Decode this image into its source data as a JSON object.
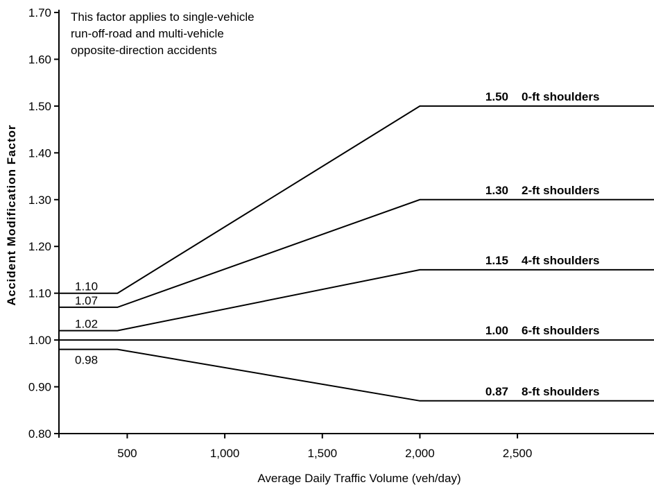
{
  "chart_data": {
    "type": "line",
    "xlabel": "Average Daily Traffic Volume (veh/day)",
    "ylabel": "Accident Modification Factor",
    "xlim": [
      150,
      3200
    ],
    "ylim": [
      0.8,
      1.7
    ],
    "x_ticks": [
      {
        "value": 500,
        "label": "500"
      },
      {
        "value": 1000,
        "label": "1,000"
      },
      {
        "value": 1500,
        "label": "1,500"
      },
      {
        "value": 2000,
        "label": "2,000"
      },
      {
        "value": 2500,
        "label": "2,500"
      }
    ],
    "y_ticks": [
      {
        "value": 0.8,
        "label": "0.80"
      },
      {
        "value": 0.9,
        "label": "0.90"
      },
      {
        "value": 1.0,
        "label": "1.00"
      },
      {
        "value": 1.1,
        "label": "1.10"
      },
      {
        "value": 1.2,
        "label": "1.20"
      },
      {
        "value": 1.3,
        "label": "1.30"
      },
      {
        "value": 1.4,
        "label": "1.40"
      },
      {
        "value": 1.5,
        "label": "1.50"
      },
      {
        "value": 1.6,
        "label": "1.60"
      },
      {
        "value": 1.7,
        "label": "1.70"
      }
    ],
    "annotation": [
      "This factor applies to single-vehicle",
      "run-off-road and multi-vehicle",
      "opposite-direction accidents"
    ],
    "series": [
      {
        "name": "0-ft shoulders",
        "value_label": "1.50",
        "start_label": "1.10",
        "x": [
          150,
          450,
          2000,
          3200
        ],
        "y": [
          1.1,
          1.1,
          1.5,
          1.5
        ]
      },
      {
        "name": "2-ft shoulders",
        "value_label": "1.30",
        "start_label": "1.07",
        "x": [
          150,
          450,
          2000,
          3200
        ],
        "y": [
          1.07,
          1.07,
          1.3,
          1.3
        ]
      },
      {
        "name": "4-ft shoulders",
        "value_label": "1.15",
        "start_label": "1.02",
        "x": [
          150,
          450,
          2000,
          3200
        ],
        "y": [
          1.02,
          1.02,
          1.15,
          1.15
        ]
      },
      {
        "name": "6-ft shoulders",
        "value_label": "1.00",
        "start_label": "",
        "x": [
          150,
          3200
        ],
        "y": [
          1.0,
          1.0
        ]
      },
      {
        "name": "8-ft shoulders",
        "value_label": "0.87",
        "start_label": "0.98",
        "x": [
          150,
          450,
          2000,
          3200
        ],
        "y": [
          0.98,
          0.98,
          0.87,
          0.87
        ]
      }
    ]
  }
}
